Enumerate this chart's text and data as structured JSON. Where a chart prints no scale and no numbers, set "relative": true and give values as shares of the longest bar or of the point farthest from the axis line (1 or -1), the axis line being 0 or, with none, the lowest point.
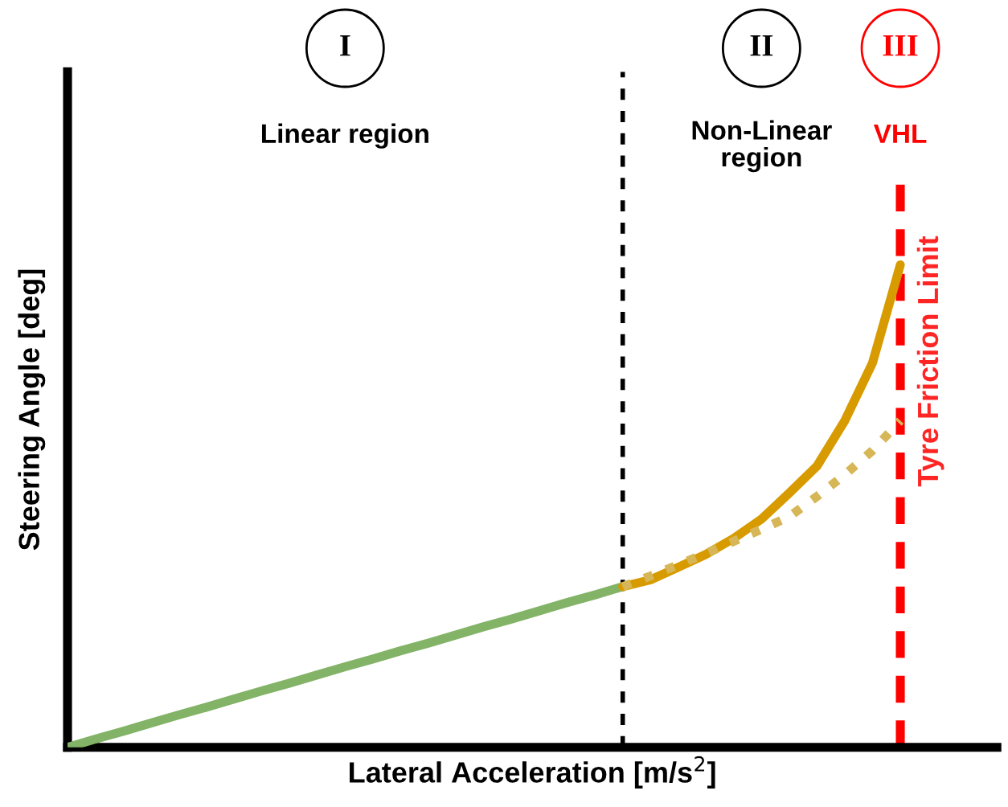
{
  "chart_data": {
    "type": "line",
    "relative": true,
    "xlabel": "Lateral Acceleration [m/s$^{2}$]",
    "ylabel": "Steering Angle [deg]",
    "categories": [
      null,
      null,
      null,
      null,
      null,
      null,
      null,
      null,
      null,
      null,
      null,
      null,
      null,
      null,
      null,
      null,
      null,
      null,
      null,
      null,
      null,
      null,
      null,
      null,
      null,
      null,
      null,
      null,
      null,
      null,
      null
    ],
    "legend": false,
    "tick_labels": false,
    "marker": "none",
    "series": [
      {
        "color": "#82b366",
        "line_style": "solid",
        "values": [
          0,
          0.017,
          0.033,
          0.05,
          0.067,
          0.083,
          0.1,
          0.117,
          0.133,
          0.15,
          0.167,
          0.183,
          0.2,
          0.216,
          0.233,
          0.25,
          0.266,
          0.283,
          0.3,
          0.316,
          0.333,
          null,
          null,
          null,
          null,
          null,
          null,
          null,
          null,
          null,
          null
        ]
      },
      {
        "color": "#d79b00",
        "line_style": "solid",
        "values": [
          null,
          null,
          null,
          null,
          null,
          null,
          null,
          null,
          null,
          null,
          null,
          null,
          null,
          null,
          null,
          null,
          null,
          null,
          null,
          null,
          0.333,
          0.347,
          0.373,
          0.4,
          0.433,
          0.473,
          0.527,
          0.583,
          0.677,
          0.797,
          1.0
        ]
      },
      {
        "color": "#d6b656",
        "line_style": "dotted",
        "values": [
          null,
          null,
          null,
          null,
          null,
          null,
          null,
          null,
          null,
          null,
          null,
          null,
          null,
          null,
          null,
          null,
          null,
          null,
          null,
          null,
          0.333,
          0.355,
          0.378,
          0.402,
          0.427,
          0.452,
          0.478,
          0.52,
          0.565,
          0.615,
          0.677
        ]
      }
    ],
    "annotations": [
      "I",
      "II",
      "III",
      "Linear region",
      "Non-Linear region",
      "VHL",
      "Tyre Friction Limit"
    ]
  }
}
